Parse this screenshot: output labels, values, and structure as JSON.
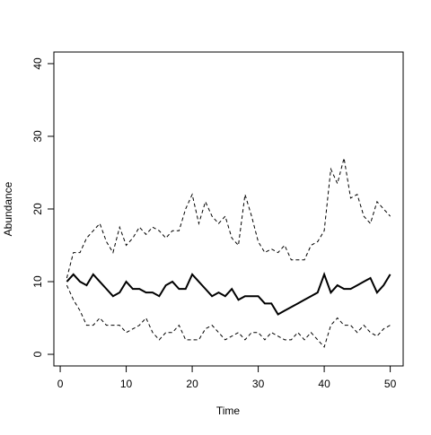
{
  "chart_data": {
    "type": "line",
    "xlabel": "Time",
    "ylabel": "Abundance",
    "x": [
      1,
      2,
      3,
      4,
      5,
      6,
      7,
      8,
      9,
      10,
      11,
      12,
      13,
      14,
      15,
      16,
      17,
      18,
      19,
      20,
      21,
      22,
      23,
      24,
      25,
      26,
      27,
      28,
      29,
      30,
      31,
      32,
      33,
      34,
      35,
      36,
      37,
      38,
      39,
      40,
      41,
      42,
      43,
      44,
      45,
      46,
      47,
      48,
      49,
      50
    ],
    "series": [
      {
        "color": "#000000",
        "dash": "solid",
        "width": 2,
        "values": [
          10,
          11,
          10,
          9.5,
          11,
          10,
          9,
          8,
          8.5,
          10,
          9,
          9,
          8.5,
          8.5,
          8,
          9.5,
          10,
          9,
          9,
          11,
          10,
          9,
          8,
          8.5,
          8,
          9,
          7.5,
          8,
          8,
          8,
          7,
          7,
          5.5,
          6,
          6.5,
          7,
          7.5,
          8,
          8.5,
          11,
          8.5,
          9.5,
          9,
          9,
          9.5,
          10,
          10.5,
          8.5,
          9.5,
          11
        ]
      },
      {
        "color": "#000000",
        "dash": "dashed",
        "width": 1,
        "values": [
          10.5,
          14,
          14,
          16,
          17,
          18,
          15.5,
          14,
          17.5,
          15,
          16,
          17.5,
          16.5,
          17.5,
          17,
          16,
          17,
          17,
          20,
          22,
          18,
          21,
          19,
          18,
          19,
          16,
          15,
          22,
          19,
          15.5,
          14,
          14.5,
          14,
          15,
          13,
          13,
          13,
          15,
          15.5,
          17,
          25.5,
          23.5,
          27,
          21.5,
          22,
          19,
          18,
          21,
          20,
          19
        ]
      },
      {
        "color": "#000000",
        "dash": "dashed",
        "width": 1,
        "values": [
          9.5,
          7.5,
          6,
          4,
          4,
          5,
          4,
          4,
          4,
          3,
          3.5,
          4,
          5,
          3,
          2,
          3,
          3,
          4,
          2,
          2,
          2,
          3.5,
          4,
          3,
          2,
          2.5,
          3,
          2,
          3,
          3,
          2,
          3,
          2.5,
          2,
          2,
          3,
          2,
          3,
          2,
          1,
          4,
          5,
          4,
          4,
          3,
          4,
          3,
          2.5,
          3.5,
          4
        ]
      }
    ],
    "xlim": [
      -0.96,
      51.96
    ],
    "xticks": [
      0,
      10,
      20,
      30,
      40,
      50
    ],
    "ylim": [
      -1.6,
      41.6
    ],
    "yticks": [
      0,
      10,
      20,
      30,
      40
    ]
  }
}
